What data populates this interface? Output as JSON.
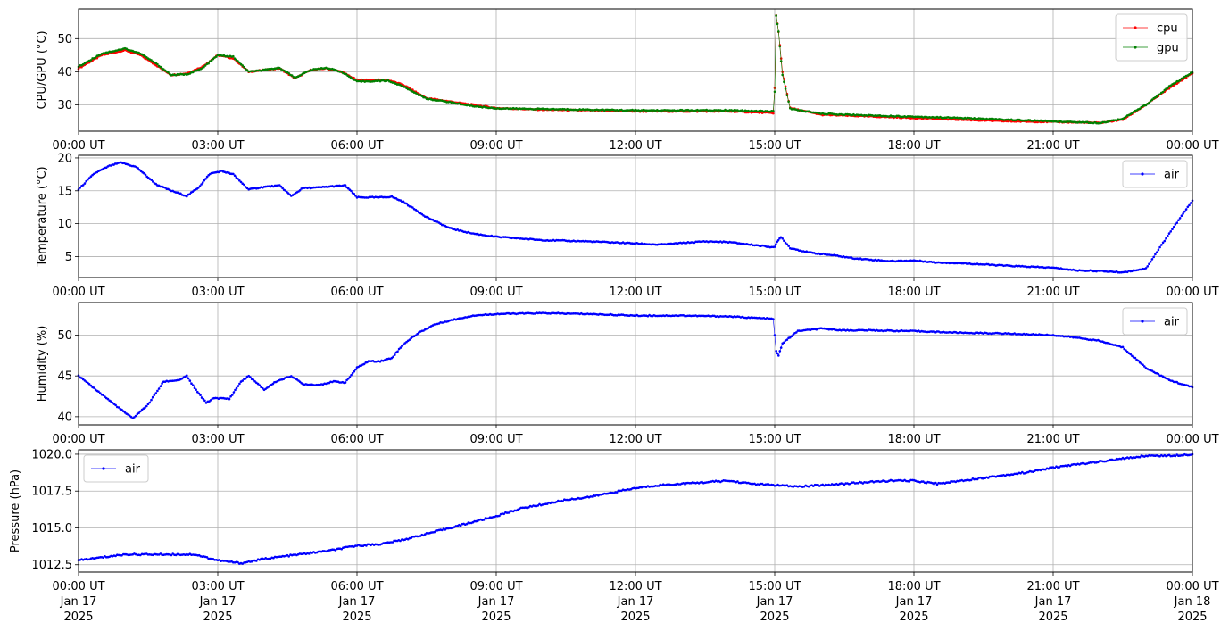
{
  "colors": {
    "cpu": "#ff0000",
    "gpu": "#008000",
    "air": "#0000ff",
    "grid": "#b0b0b0"
  },
  "x_ticks": [
    "00:00 UT",
    "03:00 UT",
    "06:00 UT",
    "09:00 UT",
    "12:00 UT",
    "15:00 UT",
    "18:00 UT",
    "21:00 UT",
    "00:00 UT"
  ],
  "x_date_lines": [
    [
      "Jan 17",
      "2025"
    ],
    [
      "Jan 17",
      "2025"
    ],
    [
      "Jan 17",
      "2025"
    ],
    [
      "Jan 17",
      "2025"
    ],
    [
      "Jan 17",
      "2025"
    ],
    [
      "Jan 17",
      "2025"
    ],
    [
      "Jan 17",
      "2025"
    ],
    [
      "Jan 17",
      "2025"
    ],
    [
      "Jan 18",
      "2025"
    ]
  ],
  "chart_data": [
    {
      "type": "line",
      "ylabel": "CPU/GPU (°C)",
      "ylim": [
        22,
        59
      ],
      "yticks": [
        "30",
        "40",
        "50"
      ],
      "ytick_values": [
        30,
        40,
        50
      ],
      "xlim": [
        "2025-01-17 00:00",
        "2025-01-18 00:00"
      ],
      "grid": true,
      "legend": "top-right",
      "series": [
        {
          "name": "cpu",
          "color": "red",
          "x": [
            "00:00",
            "00:30",
            "01:00",
            "01:20",
            "01:40",
            "02:00",
            "02:20",
            "02:40",
            "03:00",
            "03:20",
            "03:40",
            "04:00",
            "04:20",
            "04:40",
            "05:00",
            "05:20",
            "05:40",
            "06:00",
            "06:40",
            "07:00",
            "07:30",
            "08:00",
            "08:30",
            "09:00",
            "10:00",
            "11:00",
            "12:00",
            "13:00",
            "14:00",
            "14:58",
            "15:00",
            "15:02",
            "15:05",
            "15:10",
            "15:20",
            "16:00",
            "17:00",
            "18:00",
            "19:00",
            "20:00",
            "21:00",
            "22:00",
            "22:30",
            "23:00",
            "23:30",
            "24:00"
          ],
          "y": [
            41,
            45,
            46.5,
            45,
            42,
            39,
            39.5,
            41.5,
            45,
            44,
            40,
            40.5,
            41,
            38,
            40.5,
            41,
            40,
            37.5,
            37.5,
            36,
            32,
            31,
            30,
            29,
            28.5,
            28.3,
            28,
            28,
            28,
            27.5,
            35,
            57,
            52,
            40,
            29,
            27,
            26.5,
            26,
            25.5,
            25,
            24.8,
            24.5,
            25.5,
            30,
            35,
            39.5
          ]
        },
        {
          "name": "gpu",
          "color": "green",
          "x": [
            "00:00",
            "00:30",
            "01:00",
            "01:20",
            "01:40",
            "02:00",
            "02:20",
            "02:40",
            "03:00",
            "03:20",
            "03:40",
            "04:00",
            "04:20",
            "04:40",
            "05:00",
            "05:20",
            "05:40",
            "06:00",
            "06:40",
            "07:00",
            "07:30",
            "08:00",
            "08:30",
            "09:00",
            "10:00",
            "11:00",
            "12:00",
            "13:00",
            "14:00",
            "14:58",
            "15:00",
            "15:02",
            "15:05",
            "15:10",
            "15:20",
            "16:00",
            "17:00",
            "18:00",
            "19:00",
            "20:00",
            "21:00",
            "22:00",
            "22:30",
            "23:00",
            "23:30",
            "24:00"
          ],
          "y": [
            41.5,
            45.5,
            47,
            45.5,
            42.5,
            39,
            39.2,
            41,
            45,
            44.5,
            40,
            40.5,
            41.2,
            38.2,
            40.5,
            41.2,
            40,
            37,
            37.3,
            35.5,
            31.8,
            30.8,
            29.6,
            28.9,
            28.7,
            28.5,
            28.3,
            28.3,
            28.3,
            28,
            34,
            57,
            52,
            39,
            28.8,
            27.3,
            26.8,
            26.4,
            26,
            25.5,
            25,
            24.5,
            25.8,
            30,
            35.5,
            39.8
          ]
        }
      ]
    },
    {
      "type": "line",
      "ylabel": "Temperature (°C)",
      "ylim": [
        1.8,
        20.4
      ],
      "yticks": [
        "5",
        "10",
        "15",
        "20"
      ],
      "ytick_values": [
        5,
        10,
        15,
        20
      ],
      "xlim": [
        "2025-01-17 00:00",
        "2025-01-18 00:00"
      ],
      "grid": true,
      "legend": "top-right",
      "series": [
        {
          "name": "air",
          "color": "blue",
          "x": [
            "00:00",
            "00:20",
            "00:40",
            "00:55",
            "01:15",
            "01:40",
            "02:00",
            "02:20",
            "02:35",
            "02:50",
            "03:05",
            "03:20",
            "03:40",
            "04:00",
            "04:20",
            "04:35",
            "04:50",
            "05:10",
            "05:30",
            "05:45",
            "06:00",
            "06:30",
            "06:45",
            "07:00",
            "07:30",
            "08:00",
            "08:30",
            "09:00",
            "10:00",
            "11:00",
            "12:00",
            "12:30",
            "13:30",
            "14:00",
            "15:00",
            "15:03",
            "15:08",
            "15:20",
            "15:45",
            "16:15",
            "16:45",
            "17:30",
            "18:00",
            "18:30",
            "19:00",
            "20:00",
            "21:00",
            "21:30",
            "22:00",
            "22:30",
            "23:00",
            "23:30",
            "24:00"
          ],
          "y": [
            15.2,
            17.6,
            18.8,
            19.3,
            18.6,
            16,
            15,
            14.2,
            15.5,
            17.6,
            18,
            17.5,
            15.2,
            15.6,
            15.8,
            14.2,
            15.4,
            15.5,
            15.7,
            15.8,
            14,
            14,
            14.1,
            13.3,
            11,
            9.3,
            8.5,
            8,
            7.5,
            7.3,
            7,
            6.8,
            7.3,
            7.2,
            6.4,
            7.2,
            8,
            6.3,
            5.6,
            5.2,
            4.7,
            4.3,
            4.4,
            4.1,
            4,
            3.6,
            3.3,
            2.9,
            2.8,
            2.6,
            3.2,
            8.5,
            13.5
          ]
        }
      ]
    },
    {
      "type": "line",
      "ylabel": "Humidity (%)",
      "ylim": [
        39,
        54
      ],
      "yticks": [
        "40",
        "45",
        "50"
      ],
      "ytick_values": [
        40,
        45,
        50
      ],
      "xlim": [
        "2025-01-17 00:00",
        "2025-01-18 00:00"
      ],
      "grid": true,
      "legend": "top-right",
      "series": [
        {
          "name": "air",
          "color": "blue",
          "x": [
            "00:00",
            "00:20",
            "00:40",
            "01:00",
            "01:10",
            "01:30",
            "01:50",
            "02:10",
            "02:20",
            "02:30",
            "02:45",
            "02:55",
            "03:15",
            "03:30",
            "03:40",
            "04:00",
            "04:15",
            "04:35",
            "04:50",
            "05:10",
            "05:30",
            "05:45",
            "06:00",
            "06:15",
            "06:30",
            "06:45",
            "07:00",
            "07:20",
            "07:40",
            "08:00",
            "08:30",
            "09:00",
            "10:00",
            "11:00",
            "12:00",
            "13:00",
            "14:00",
            "14:58",
            "15:02",
            "15:05",
            "15:10",
            "15:30",
            "16:00",
            "16:30",
            "17:00",
            "18:00",
            "19:00",
            "20:00",
            "21:00",
            "21:30",
            "22:00",
            "22:30",
            "23:00",
            "23:30",
            "24:00"
          ],
          "y": [
            45,
            43.5,
            42,
            40.5,
            39.8,
            41.5,
            44.3,
            44.5,
            45,
            43.5,
            41.7,
            42.3,
            42.2,
            44.3,
            45,
            43.3,
            44.3,
            45,
            44,
            43.9,
            44.3,
            44.2,
            46,
            46.8,
            46.8,
            47.2,
            48.9,
            50.3,
            51.3,
            51.8,
            52.4,
            52.6,
            52.7,
            52.6,
            52.4,
            52.4,
            52.3,
            52,
            48,
            47.5,
            49,
            50.5,
            50.8,
            50.6,
            50.6,
            50.5,
            50.3,
            50.2,
            50,
            49.7,
            49.3,
            48.5,
            46,
            44.5,
            43.6
          ]
        }
      ]
    },
    {
      "type": "line",
      "ylabel": "Pressure (hPa)",
      "ylim": [
        1012,
        1020.3
      ],
      "yticks": [
        "1012.5",
        "1015.0",
        "1017.5",
        "1020.0"
      ],
      "ytick_values": [
        1012.5,
        1015,
        1017.5,
        1020
      ],
      "xlim": [
        "2025-01-17 00:00",
        "2025-01-18 00:00"
      ],
      "grid": true,
      "legend": "top-left",
      "series": [
        {
          "name": "air",
          "color": "blue",
          "x": [
            "00:00",
            "00:30",
            "01:00",
            "01:30",
            "02:00",
            "02:30",
            "03:00",
            "03:30",
            "04:00",
            "04:30",
            "05:00",
            "05:30",
            "06:00",
            "06:30",
            "07:00",
            "07:30",
            "08:00",
            "08:30",
            "09:00",
            "09:30",
            "10:00",
            "10:30",
            "11:00",
            "11:30",
            "12:00",
            "12:30",
            "13:00",
            "13:30",
            "14:00",
            "14:30",
            "15:00",
            "15:30",
            "16:00",
            "16:30",
            "17:00",
            "17:30",
            "18:00",
            "18:30",
            "19:00",
            "19:30",
            "20:00",
            "20:30",
            "21:00",
            "21:30",
            "22:00",
            "22:30",
            "23:00",
            "23:30",
            "24:00"
          ],
          "y": [
            1012.8,
            1013,
            1013.2,
            1013.2,
            1013.2,
            1013.2,
            1012.8,
            1012.6,
            1012.9,
            1013.1,
            1013.3,
            1013.5,
            1013.8,
            1013.9,
            1014.2,
            1014.6,
            1015,
            1015.4,
            1015.8,
            1016.3,
            1016.6,
            1016.9,
            1017.1,
            1017.4,
            1017.7,
            1017.9,
            1018,
            1018.1,
            1018.2,
            1018,
            1017.9,
            1017.8,
            1017.9,
            1018,
            1018.1,
            1018.2,
            1018.2,
            1018,
            1018.2,
            1018.4,
            1018.6,
            1018.8,
            1019.1,
            1019.3,
            1019.5,
            1019.7,
            1019.9,
            1019.9,
            1020
          ]
        }
      ]
    }
  ]
}
